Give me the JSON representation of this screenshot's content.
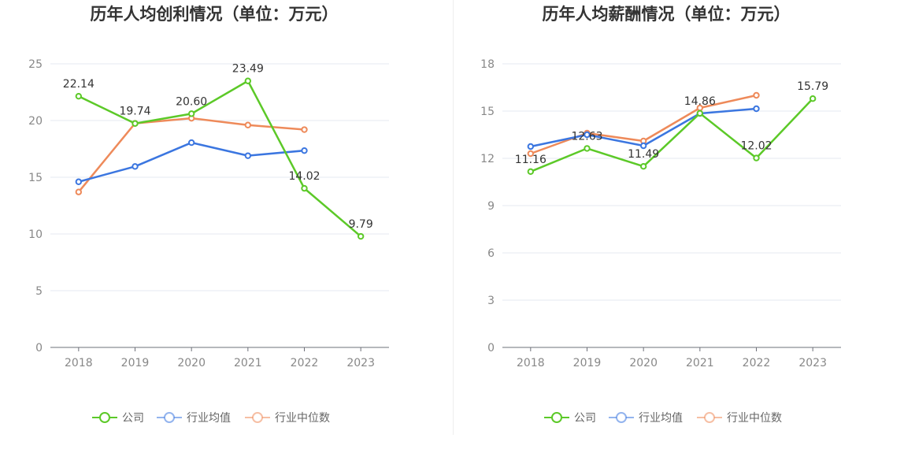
{
  "chart_data": [
    {
      "type": "line",
      "title": "历年人均创利情况（单位：万元）",
      "categories": [
        "2018",
        "2019",
        "2020",
        "2021",
        "2022",
        "2023"
      ],
      "ylim": [
        0,
        25
      ],
      "yticks": [
        "0",
        "5",
        "10",
        "15",
        "20",
        "25"
      ],
      "grid": true,
      "legend_position": "bottom",
      "series": [
        {
          "name": "公司",
          "color": "#5cc928",
          "values": [
            22.14,
            19.74,
            20.6,
            23.49,
            14.02,
            9.79
          ],
          "labels": [
            "22.14",
            "19.74",
            "20.60",
            "23.49",
            "14.02",
            "9.79"
          ]
        },
        {
          "name": "行业均值",
          "color": "#3b76e0",
          "values": [
            14.6,
            15.95,
            18.05,
            16.9,
            17.35,
            null
          ]
        },
        {
          "name": "行业中位数",
          "color": "#ee8a5a",
          "values": [
            13.7,
            19.75,
            20.2,
            19.6,
            19.2,
            null
          ]
        }
      ]
    },
    {
      "type": "line",
      "title": "历年人均薪酬情况（单位：万元）",
      "categories": [
        "2018",
        "2019",
        "2020",
        "2021",
        "2022",
        "2023"
      ],
      "ylim": [
        0,
        18
      ],
      "yticks": [
        "0",
        "3",
        "6",
        "9",
        "12",
        "15",
        "18"
      ],
      "grid": true,
      "legend_position": "bottom",
      "series": [
        {
          "name": "公司",
          "color": "#5cc928",
          "values": [
            11.16,
            12.63,
            11.49,
            14.86,
            12.02,
            15.79
          ],
          "labels": [
            "11.16",
            "12.63",
            "11.49",
            "14.86",
            "12.02",
            "15.79"
          ]
        },
        {
          "name": "行业均值",
          "color": "#3b76e0",
          "values": [
            12.75,
            13.5,
            12.8,
            14.85,
            15.15,
            null
          ]
        },
        {
          "name": "行业中位数",
          "color": "#ee8a5a",
          "values": [
            12.3,
            13.6,
            13.1,
            15.2,
            16.0,
            null
          ]
        }
      ]
    }
  ]
}
